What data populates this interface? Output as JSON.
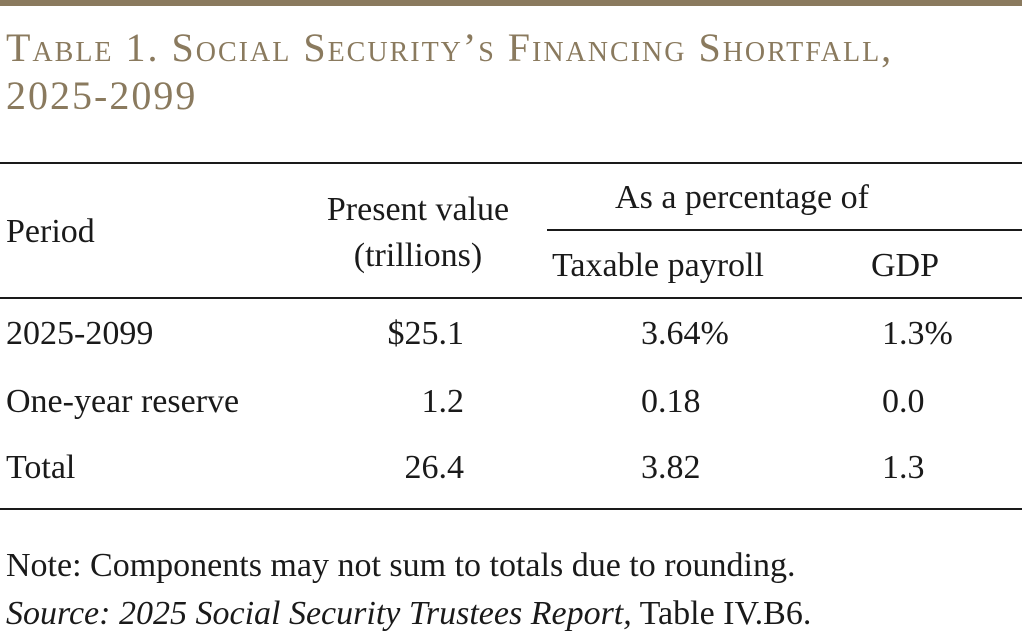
{
  "title": {
    "line1": "Table 1. Social Security’s Financing Shortfall,",
    "line2": "2025-2099"
  },
  "header": {
    "period": "Period",
    "present_value_line1": "Present value",
    "present_value_line2": "(trillions)",
    "percentage_group": "As a percentage of",
    "taxable_payroll": "Taxable payroll",
    "gdp": "GDP"
  },
  "rows": [
    {
      "period": "2025-2099",
      "present_value": "$25.1",
      "taxable_payroll": "3.64%",
      "gdp": "1.3%"
    },
    {
      "period": "One-year reserve",
      "present_value": "1.2",
      "taxable_payroll": "0.18",
      "gdp": "0.0"
    },
    {
      "period": "Total",
      "present_value": "26.4",
      "taxable_payroll": "3.82",
      "gdp": "1.3"
    }
  ],
  "note": "Note: Components may not sum to totals due to rounding.",
  "source": {
    "italic_part": "Source: 2025 Social Security Trustees Report,",
    "plain_part": " Table IV.B6."
  },
  "colors": {
    "accent": "#8a7a5e",
    "text": "#1a1a1a"
  }
}
